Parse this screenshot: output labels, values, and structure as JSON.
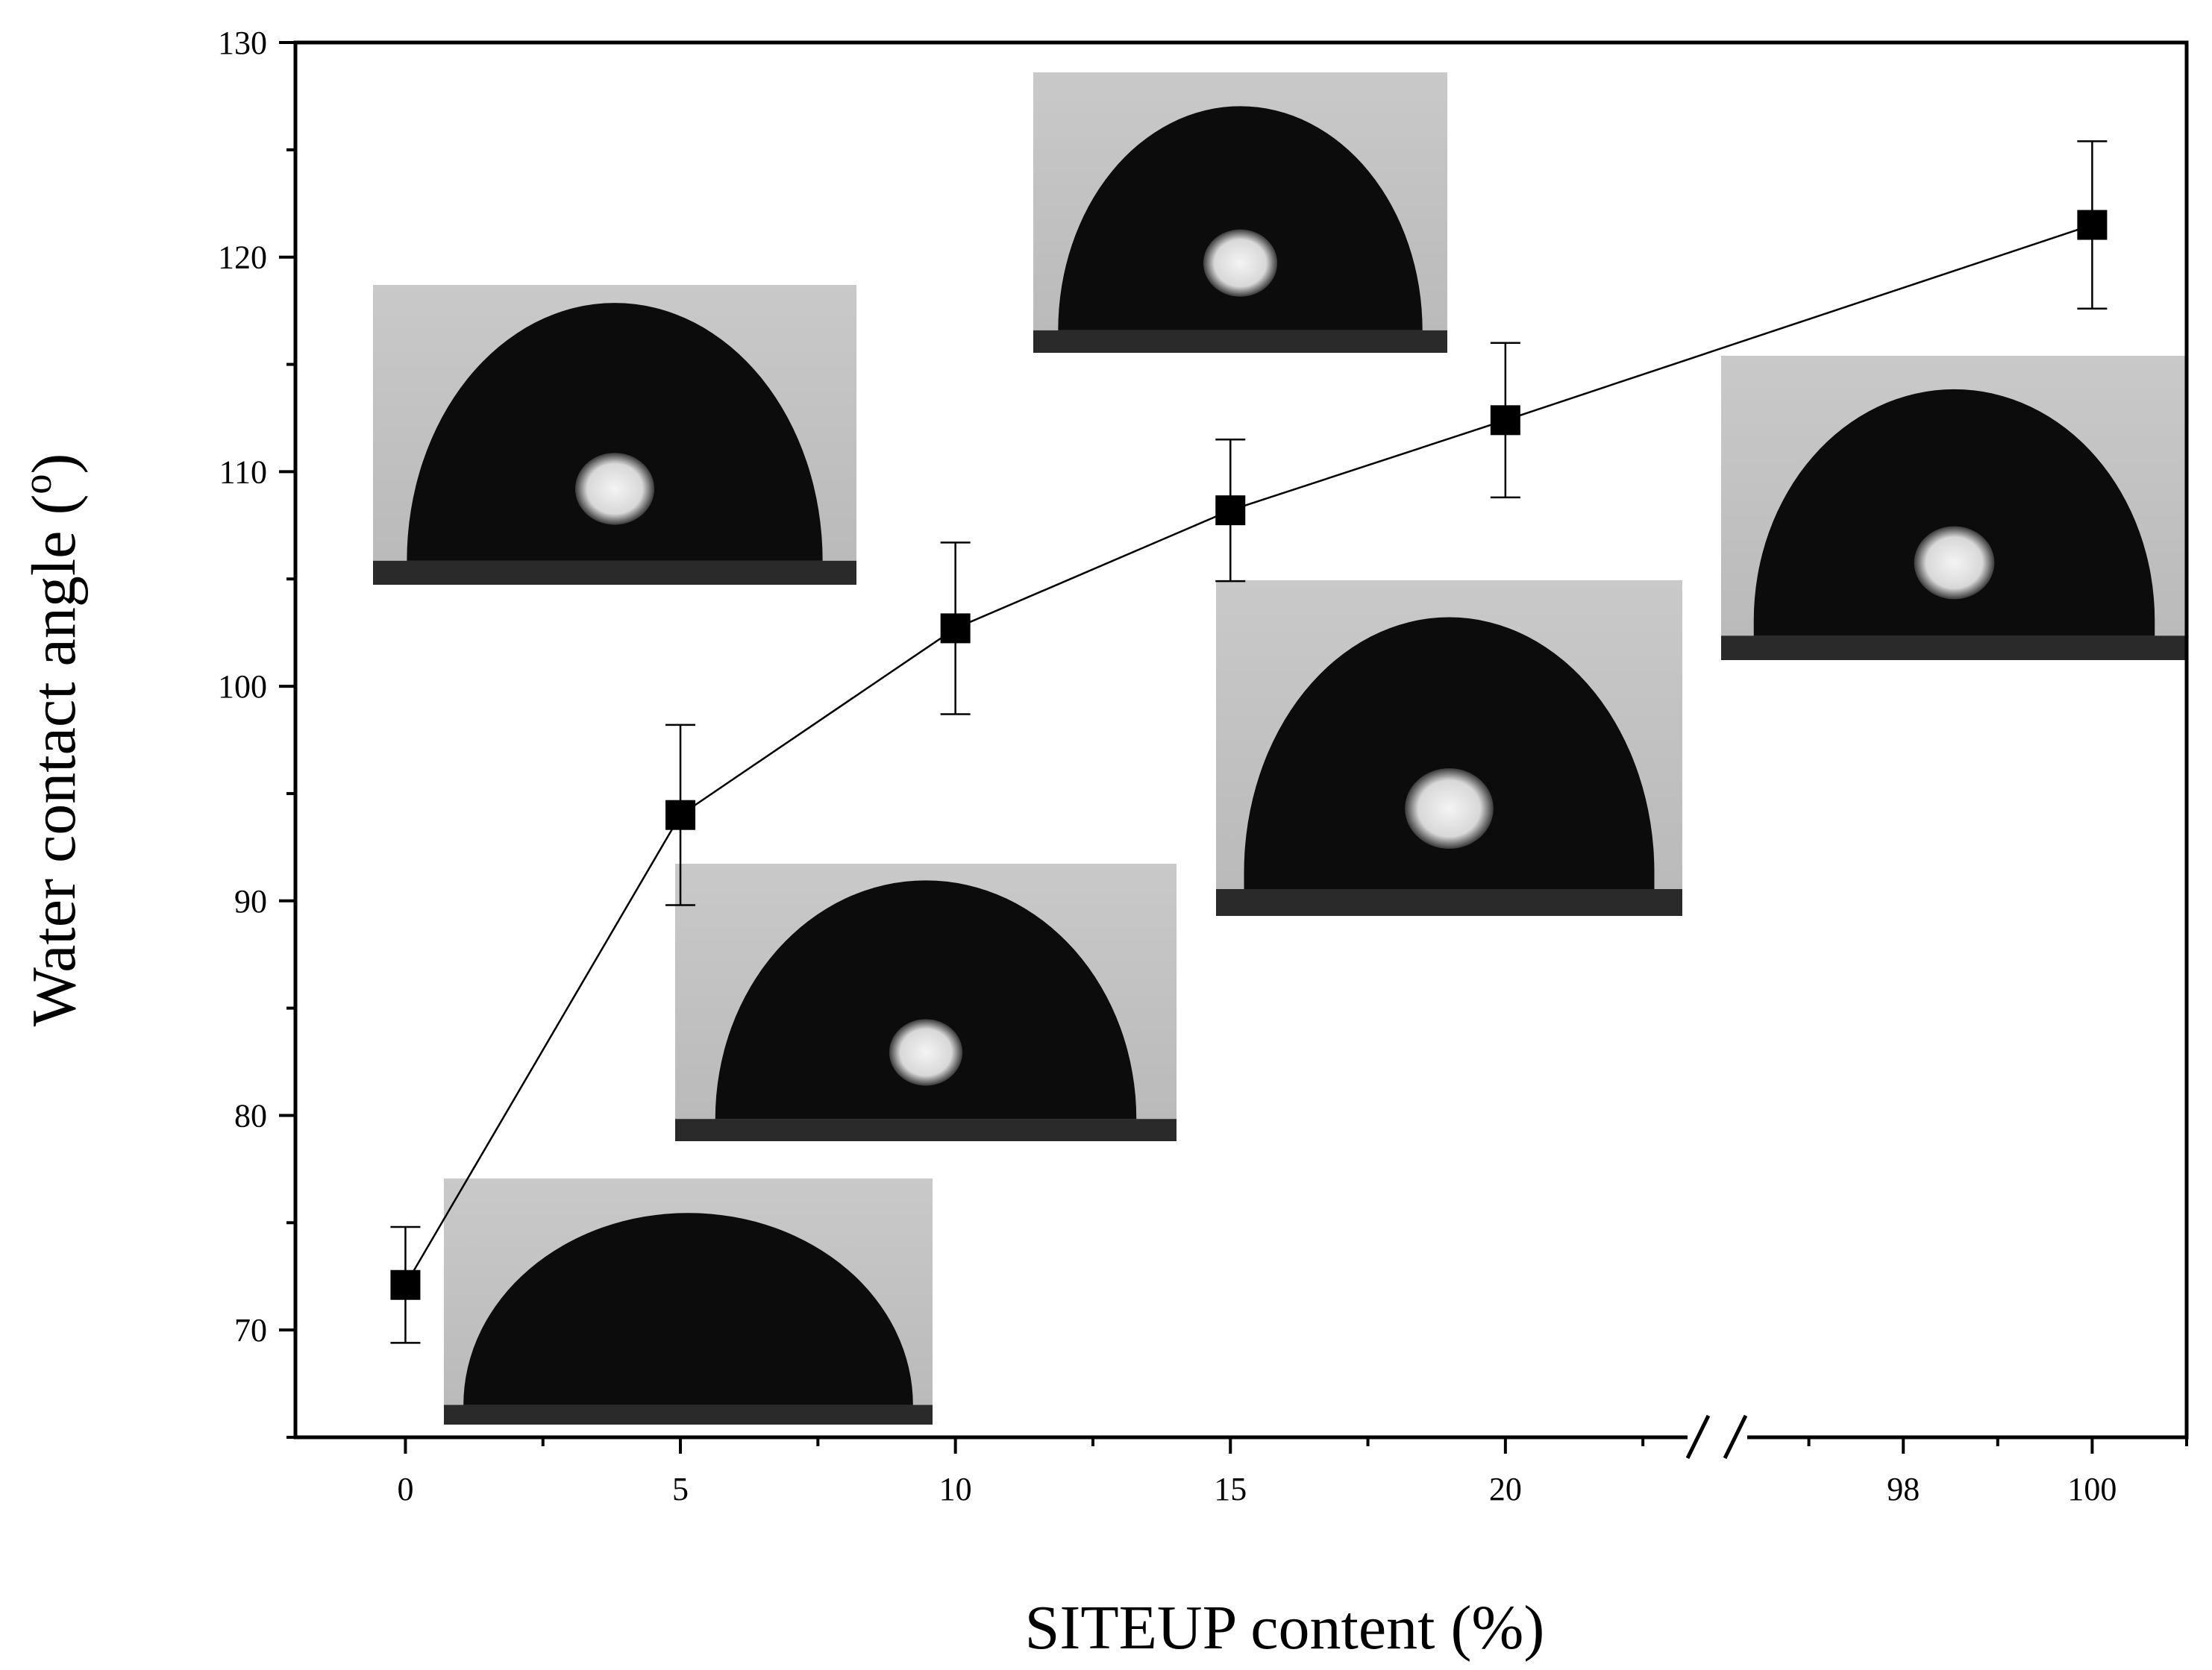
{
  "chart_data": {
    "type": "scatter",
    "xlabel": "SITEUP content (%)",
    "ylabel_main": "Water contact angle (",
    "ylabel_sup": "o",
    "ylabel_end": ")",
    "ylim": [
      65,
      130
    ],
    "y_ticks": [
      70,
      80,
      90,
      100,
      110,
      120,
      130
    ],
    "x_segments": [
      {
        "range": [
          -2,
          23.8
        ],
        "ticks": [
          0,
          5,
          10,
          15,
          20
        ]
      },
      {
        "range": [
          96,
          101
        ],
        "ticks": [
          98,
          100
        ]
      }
    ],
    "axis_break": "//",
    "line": "connected",
    "x": [
      0,
      5,
      10,
      15,
      20,
      100
    ],
    "y": [
      72.1,
      94.0,
      102.7,
      108.2,
      112.4,
      121.5
    ],
    "error": [
      2.7,
      4.2,
      4.0,
      3.3,
      3.6,
      3.9
    ],
    "insets": [
      {
        "x": 0,
        "label": "droplet image",
        "shape": "low-dome"
      },
      {
        "x": 5,
        "label": "droplet image",
        "shape": "dome"
      },
      {
        "x": 10,
        "label": "droplet image",
        "shape": "high-dome"
      },
      {
        "x": 15,
        "label": "droplet image",
        "shape": "round"
      },
      {
        "x": 20,
        "label": "droplet image",
        "shape": "tall-round"
      },
      {
        "x": 100,
        "label": "droplet image",
        "shape": "sphere"
      }
    ]
  }
}
